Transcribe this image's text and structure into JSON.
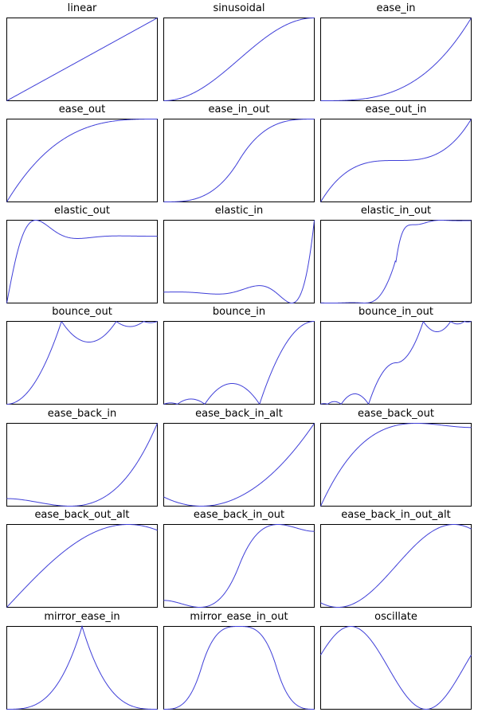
{
  "chart_data": [
    {
      "type": "line",
      "title": "linear",
      "grid": false,
      "series": [
        {
          "key": "linear"
        }
      ]
    },
    {
      "type": "line",
      "title": "sinusoidal",
      "grid": false,
      "series": [
        {
          "key": "sinusoidal"
        }
      ]
    },
    {
      "type": "line",
      "title": "ease_in",
      "grid": false,
      "series": [
        {
          "key": "ease_in"
        }
      ]
    },
    {
      "type": "line",
      "title": "ease_out",
      "grid": false,
      "series": [
        {
          "key": "ease_out"
        }
      ]
    },
    {
      "type": "line",
      "title": "ease_in_out",
      "grid": false,
      "series": [
        {
          "key": "ease_in_out"
        }
      ]
    },
    {
      "type": "line",
      "title": "ease_out_in",
      "grid": false,
      "series": [
        {
          "key": "ease_out_in"
        }
      ]
    },
    {
      "type": "line",
      "title": "elastic_out",
      "grid": false,
      "series": [
        {
          "key": "elastic_out"
        }
      ]
    },
    {
      "type": "line",
      "title": "elastic_in",
      "grid": false,
      "series": [
        {
          "key": "elastic_in"
        }
      ]
    },
    {
      "type": "line",
      "title": "elastic_in_out",
      "grid": false,
      "series": [
        {
          "key": "elastic_in_out"
        }
      ]
    },
    {
      "type": "line",
      "title": "bounce_out",
      "grid": false,
      "series": [
        {
          "key": "bounce_out"
        }
      ]
    },
    {
      "type": "line",
      "title": "bounce_in",
      "grid": false,
      "series": [
        {
          "key": "bounce_in"
        }
      ]
    },
    {
      "type": "line",
      "title": "bounce_in_out",
      "grid": false,
      "series": [
        {
          "key": "bounce_in_out"
        }
      ]
    },
    {
      "type": "line",
      "title": "ease_back_in",
      "grid": false,
      "series": [
        {
          "key": "ease_back_in"
        }
      ]
    },
    {
      "type": "line",
      "title": "ease_back_in_alt",
      "grid": false,
      "series": [
        {
          "key": "ease_back_in_alt"
        }
      ]
    },
    {
      "type": "line",
      "title": "ease_back_out",
      "grid": false,
      "series": [
        {
          "key": "ease_back_out"
        }
      ]
    },
    {
      "type": "line",
      "title": "ease_back_out_alt",
      "grid": false,
      "series": [
        {
          "key": "ease_back_out_alt"
        }
      ]
    },
    {
      "type": "line",
      "title": "ease_back_in_out",
      "grid": false,
      "series": [
        {
          "key": "ease_back_in_out"
        }
      ]
    },
    {
      "type": "line",
      "title": "ease_back_in_out_alt",
      "grid": false,
      "series": [
        {
          "key": "ease_back_in_out_alt"
        }
      ]
    },
    {
      "type": "line",
      "title": "mirror_ease_in",
      "grid": false,
      "series": [
        {
          "key": "mirror_ease_in"
        }
      ]
    },
    {
      "type": "line",
      "title": "mirror_ease_in_out",
      "grid": false,
      "series": [
        {
          "key": "mirror_ease_in_out"
        }
      ]
    },
    {
      "type": "line",
      "title": "oscillate",
      "grid": false,
      "series": [
        {
          "key": "oscillate"
        }
      ]
    }
  ],
  "colors": {
    "line": "#3f3fd8",
    "frame": "#000000"
  }
}
